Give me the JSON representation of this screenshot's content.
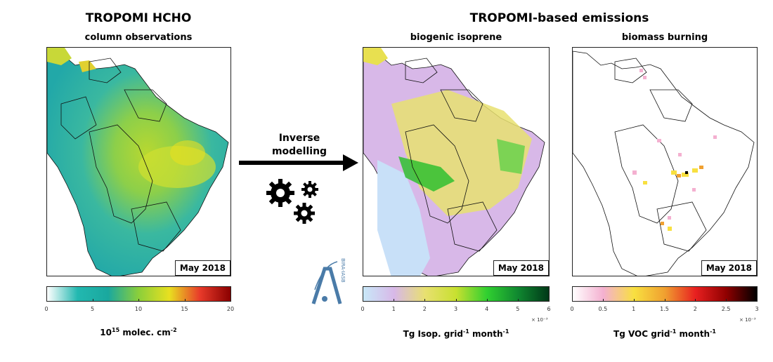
{
  "left": {
    "title": "TROPOMI HCHO",
    "subtitle": "column observations",
    "month": "May 2018",
    "colorbar": {
      "ticks": [
        "0",
        "5",
        "10",
        "15",
        "20"
      ],
      "exponent": "",
      "unit_base": "10",
      "unit_exp": "15",
      "unit_text": " molec. cm",
      "unit_tail_exp": "-2",
      "colors": [
        "#ffffff",
        "#22b8b0",
        "#1aa89e",
        "#8ccf3a",
        "#e8e020",
        "#e83a2a",
        "#8a0000"
      ]
    }
  },
  "right_title": "TROPOMI-based emissions",
  "middle": {
    "arrow_text_line1": "Inverse",
    "arrow_text_line2": "modelling",
    "gears_icon": "gears-icon"
  },
  "isoprene": {
    "subtitle": "biogenic isoprene",
    "month": "May 2018",
    "colorbar": {
      "ticks": [
        "0",
        "1",
        "2",
        "3",
        "4",
        "5",
        "6"
      ],
      "exponent": "× 10⁻³",
      "unit_text": "Tg Isop. grid",
      "unit_exp1": "-1",
      "unit_mid": " month",
      "unit_exp2": "-1",
      "colors": [
        "#c8e8f8",
        "#d8b8e8",
        "#e8e070",
        "#c8e030",
        "#30d030",
        "#108830",
        "#003818"
      ]
    }
  },
  "burning": {
    "subtitle": "biomass burning",
    "month": "May 2018",
    "colorbar": {
      "ticks": [
        "0",
        "0.5",
        "1",
        "1.5",
        "2",
        "2.5",
        "3"
      ],
      "exponent": "× 10⁻³",
      "unit_text": "Tg VOC grid",
      "unit_exp1": "-1",
      "unit_mid": " month",
      "unit_exp2": "-1",
      "colors": [
        "#ffffff",
        "#f4b0d0",
        "#f8e040",
        "#f0a030",
        "#e82020",
        "#900000",
        "#000000"
      ]
    }
  },
  "logo": {
    "text": "BIRA-IASB"
  }
}
